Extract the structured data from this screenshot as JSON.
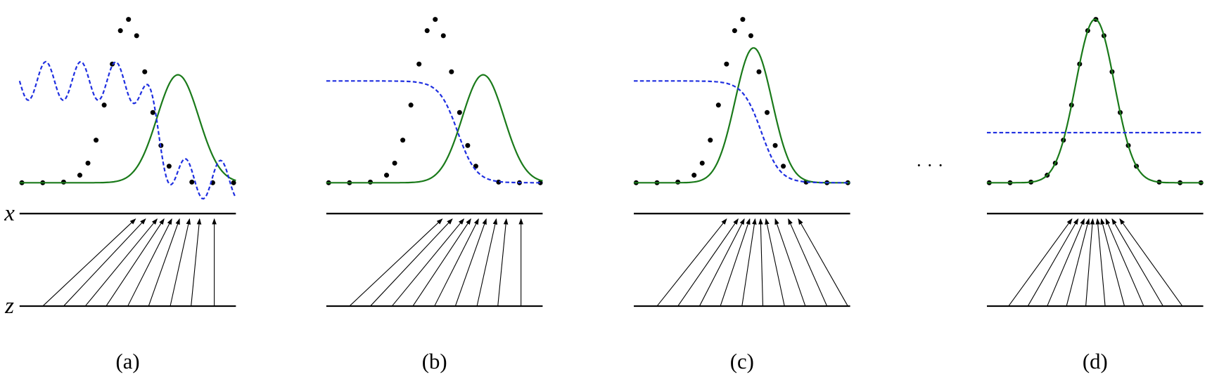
{
  "axis_labels": {
    "x": "x",
    "z": "z"
  },
  "ellipsis": "· · ·",
  "panels": [
    {
      "label": "(a)"
    },
    {
      "label": "(b)"
    },
    {
      "label": "(c)"
    },
    {
      "label": "(d)"
    }
  ]
}
